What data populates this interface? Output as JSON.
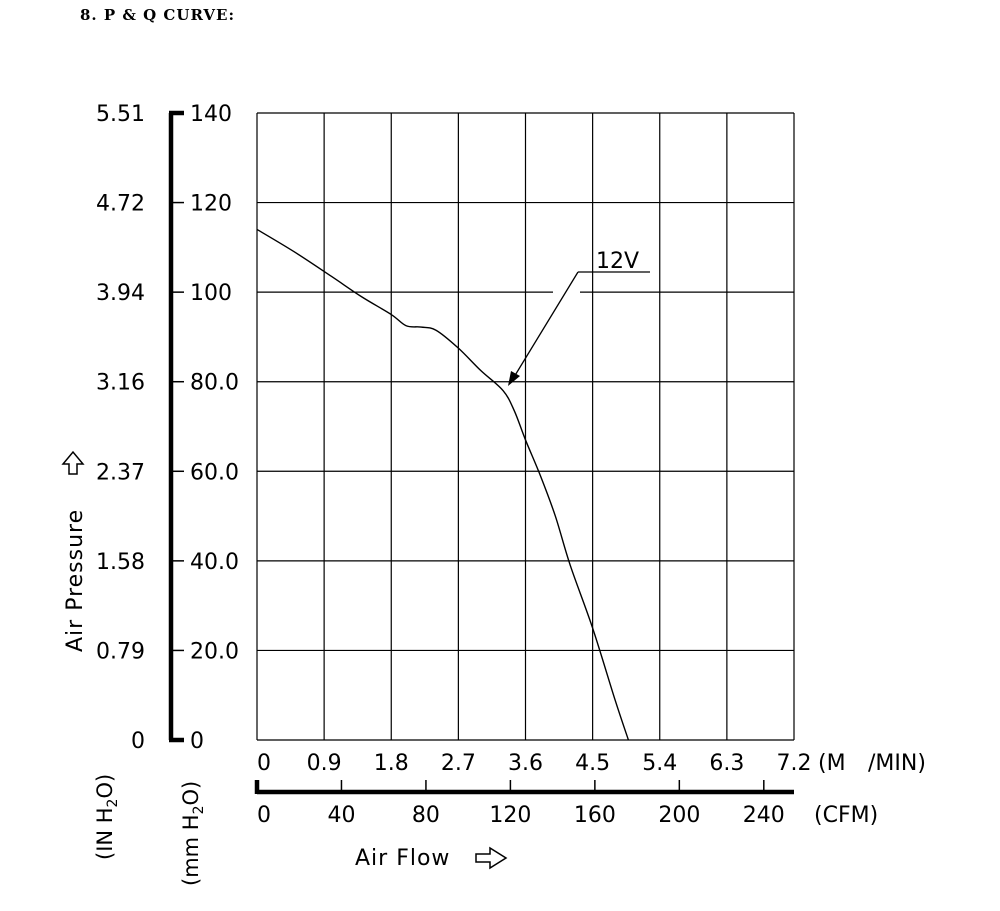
{
  "heading": "8. P & Q CURVE:",
  "chart_data": {
    "type": "line",
    "xlabel": "Air Flow",
    "ylabel": "Air Pressure",
    "x_unit_primary": "(M /MIN)",
    "x_unit_secondary": "(CFM)",
    "y_unit_primary": "(mm H2O)",
    "y_unit_secondary": "(IN H2O)",
    "xlim_m3min": [
      0,
      7.2
    ],
    "xlim_cfm": [
      0,
      254.3
    ],
    "ylim": [
      0,
      140
    ],
    "x_ticks_m3min": [
      "0",
      "0.9",
      "1.8",
      "2.7",
      "3.6",
      "4.5",
      "5.4",
      "6.3",
      "7.2"
    ],
    "x_ticks_cfm": [
      "0",
      "40",
      "80",
      "120",
      "160",
      "200",
      "240"
    ],
    "y_ticks_mmh2o": [
      "0",
      "20.0",
      "40.0",
      "60.0",
      "80.0",
      "100",
      "120",
      "140"
    ],
    "y_ticks_inh2o": [
      "0",
      "0.79",
      "1.58",
      "2.37",
      "3.16",
      "3.94",
      "4.72",
      "5.51"
    ],
    "grid": true,
    "series": [
      {
        "name": "12V",
        "x_unit": "M3/MIN",
        "y_unit": "mm H2O",
        "x": [
          0,
          0.5,
          1.0,
          1.4,
          1.8,
          2.0,
          2.2,
          2.4,
          2.7,
          3.0,
          3.3,
          3.45,
          3.6,
          3.8,
          4.0,
          4.2,
          4.5,
          4.8,
          4.98
        ],
        "y": [
          114,
          109,
          103.5,
          99,
          95,
          92.5,
          92.2,
          91.5,
          87.5,
          82.5,
          78,
          73.5,
          67,
          59,
          50,
          39,
          25,
          9,
          0
        ]
      }
    ]
  },
  "labels": {
    "x_axis_title": "Air Flow",
    "y_axis_title": "Air Pressure",
    "series_label": "12V",
    "m_unit_part1": "(M",
    "m_unit_part2": "/MIN)",
    "cfm_unit": "(CFM)",
    "in_unit_prefix": "(IN H",
    "in_unit_sub": "2",
    "in_unit_suffix": "O)",
    "mm_unit_prefix": "(mm H",
    "mm_unit_sub": "2",
    "mm_unit_suffix": "O)"
  }
}
